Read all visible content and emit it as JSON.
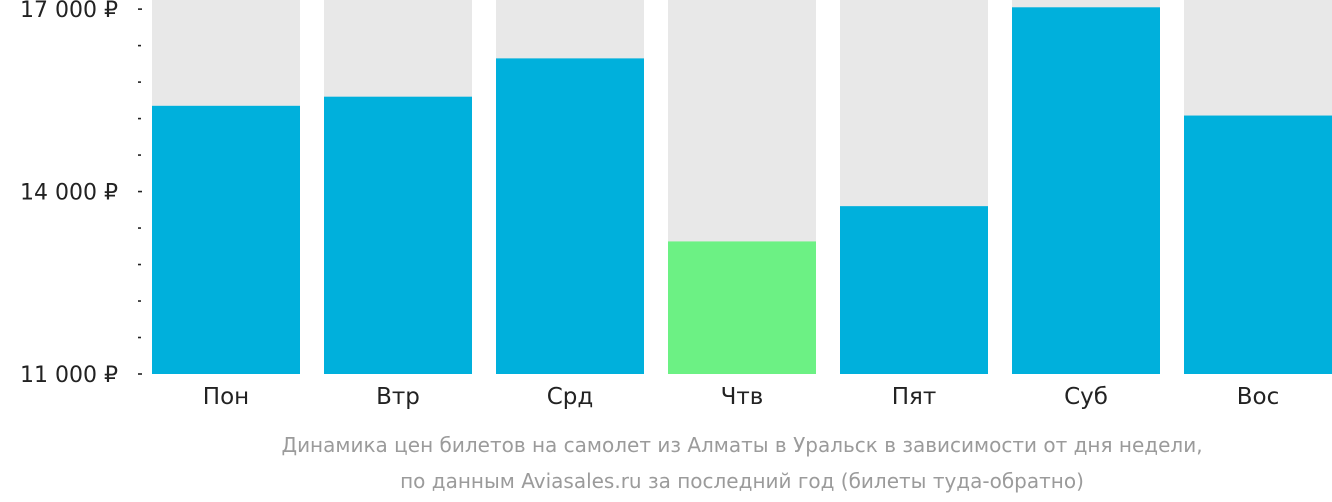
{
  "chart_data": {
    "type": "bar",
    "categories": [
      "Пон",
      "Втр",
      "Срд",
      "Чтв",
      "Пят",
      "Суб",
      "Вос"
    ],
    "values": [
      15410,
      15560,
      16190,
      13180,
      13760,
      17030,
      15250
    ],
    "ylim": [
      11000,
      17150
    ],
    "yticks": [
      {
        "value": 11000,
        "label": "11 000 ₽"
      },
      {
        "value": 14000,
        "label": "14 000 ₽"
      },
      {
        "value": 17000,
        "label": "17 000 ₽"
      }
    ],
    "minor_step": 600,
    "highlight_index": 3,
    "grid": false,
    "legend": "none",
    "colors": {
      "bar": "#00b0dc",
      "highlight": "#6cf184",
      "track": "#e8e8e8",
      "axis": "#222222",
      "caption": "#9b9b9b"
    },
    "caption_lines": [
      "Динамика цен билетов на самолет из Алматы в Уральск в зависимости от дня недели,",
      "по данным Aviasales.ru за последний год (билеты туда-обратно)"
    ]
  }
}
